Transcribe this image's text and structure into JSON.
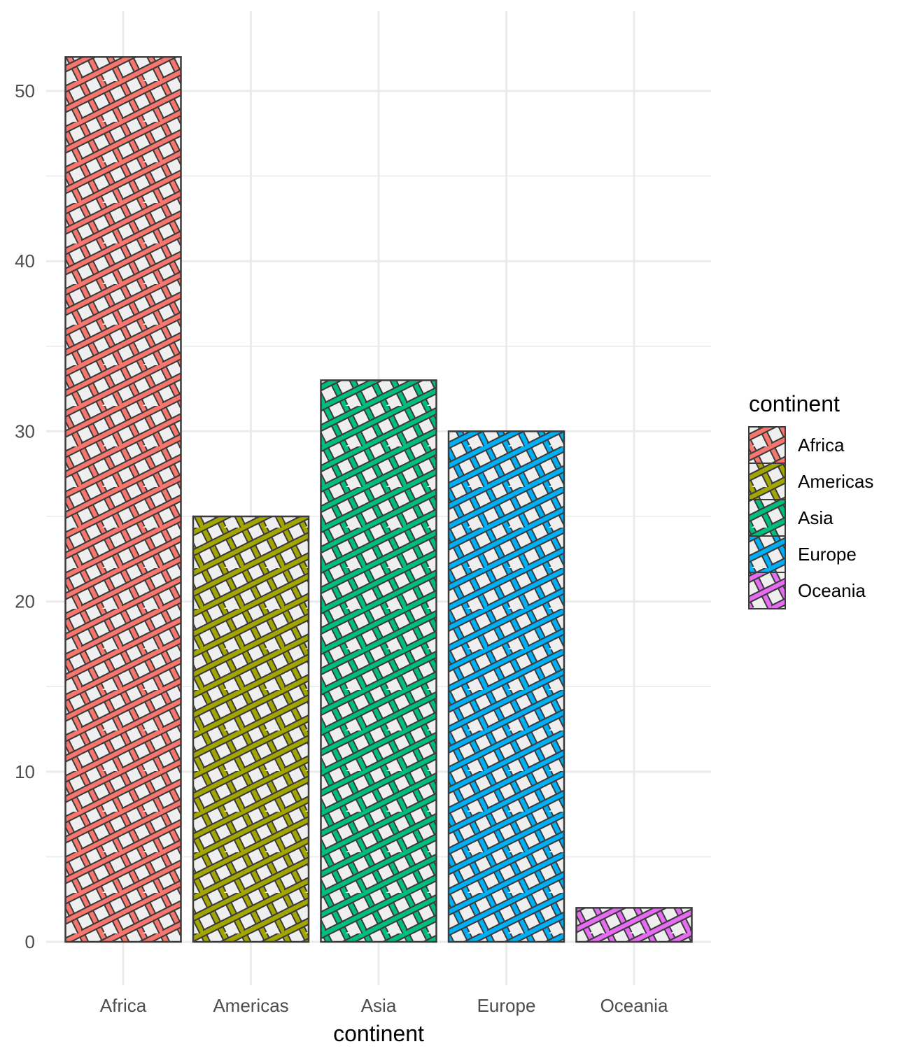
{
  "chart_data": {
    "type": "bar",
    "categories": [
      "Africa",
      "Americas",
      "Asia",
      "Europe",
      "Oceania"
    ],
    "values": [
      52,
      25,
      33,
      30,
      2
    ],
    "xlabel": "continent",
    "ylabel": "",
    "ylim": [
      0,
      55
    ],
    "yticks": [
      0,
      10,
      20,
      30,
      40,
      50
    ],
    "grid": true,
    "pattern": "crosshatch",
    "bar_fill": "#efefef",
    "bar_stroke": "#3b3b3b",
    "grid_color": "#ebebeb",
    "colors": [
      "#F8766D",
      "#A3A500",
      "#00BF7D",
      "#00B0F6",
      "#E76BF3"
    ],
    "legend": {
      "title": "continent",
      "position": "right",
      "entries": [
        "Africa",
        "Americas",
        "Asia",
        "Europe",
        "Oceania"
      ]
    }
  }
}
